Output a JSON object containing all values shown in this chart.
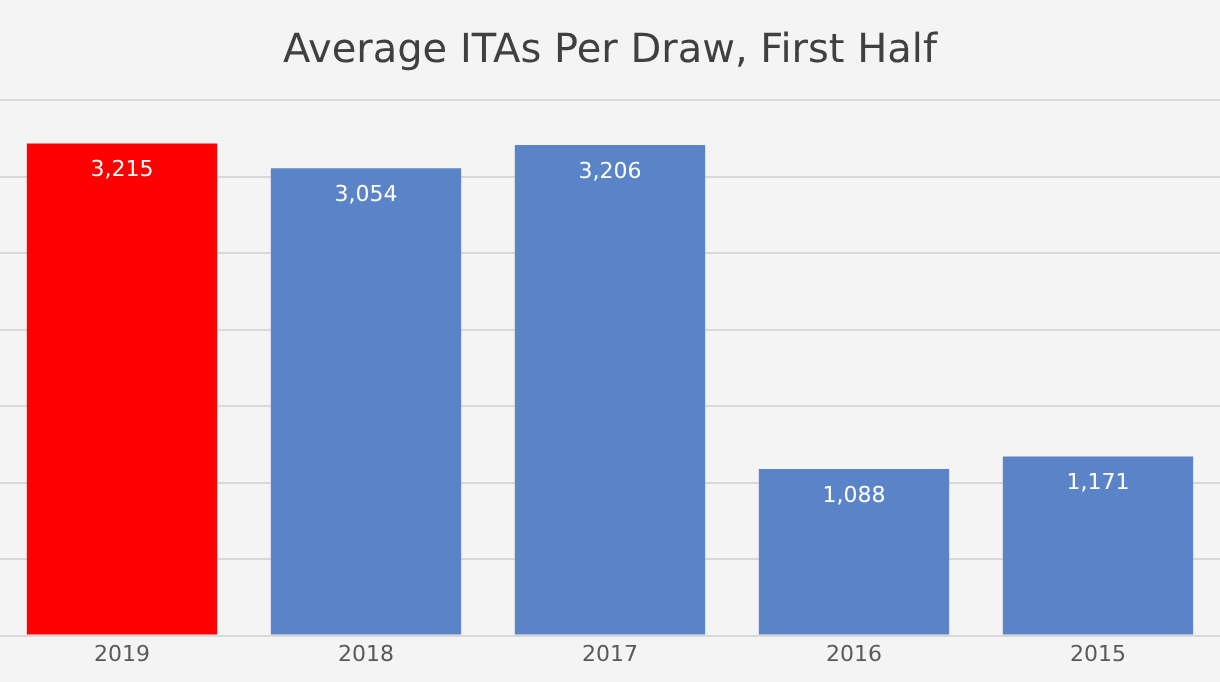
{
  "chart_data": {
    "type": "bar",
    "title": "Average ITAs Per Draw, First Half",
    "categories": [
      "2019",
      "2018",
      "2017",
      "2016",
      "2015"
    ],
    "values": [
      3215,
      3054,
      3206,
      1088,
      1171
    ],
    "value_labels": [
      "3,215",
      "3,054",
      "3,206",
      "1,088",
      "1,171"
    ],
    "colors": [
      "#ff0000",
      "#5b84c8",
      "#5b84c8",
      "#5b84c8",
      "#5b84c8"
    ],
    "grid": "y",
    "legend": false,
    "tick_labels": "x"
  }
}
